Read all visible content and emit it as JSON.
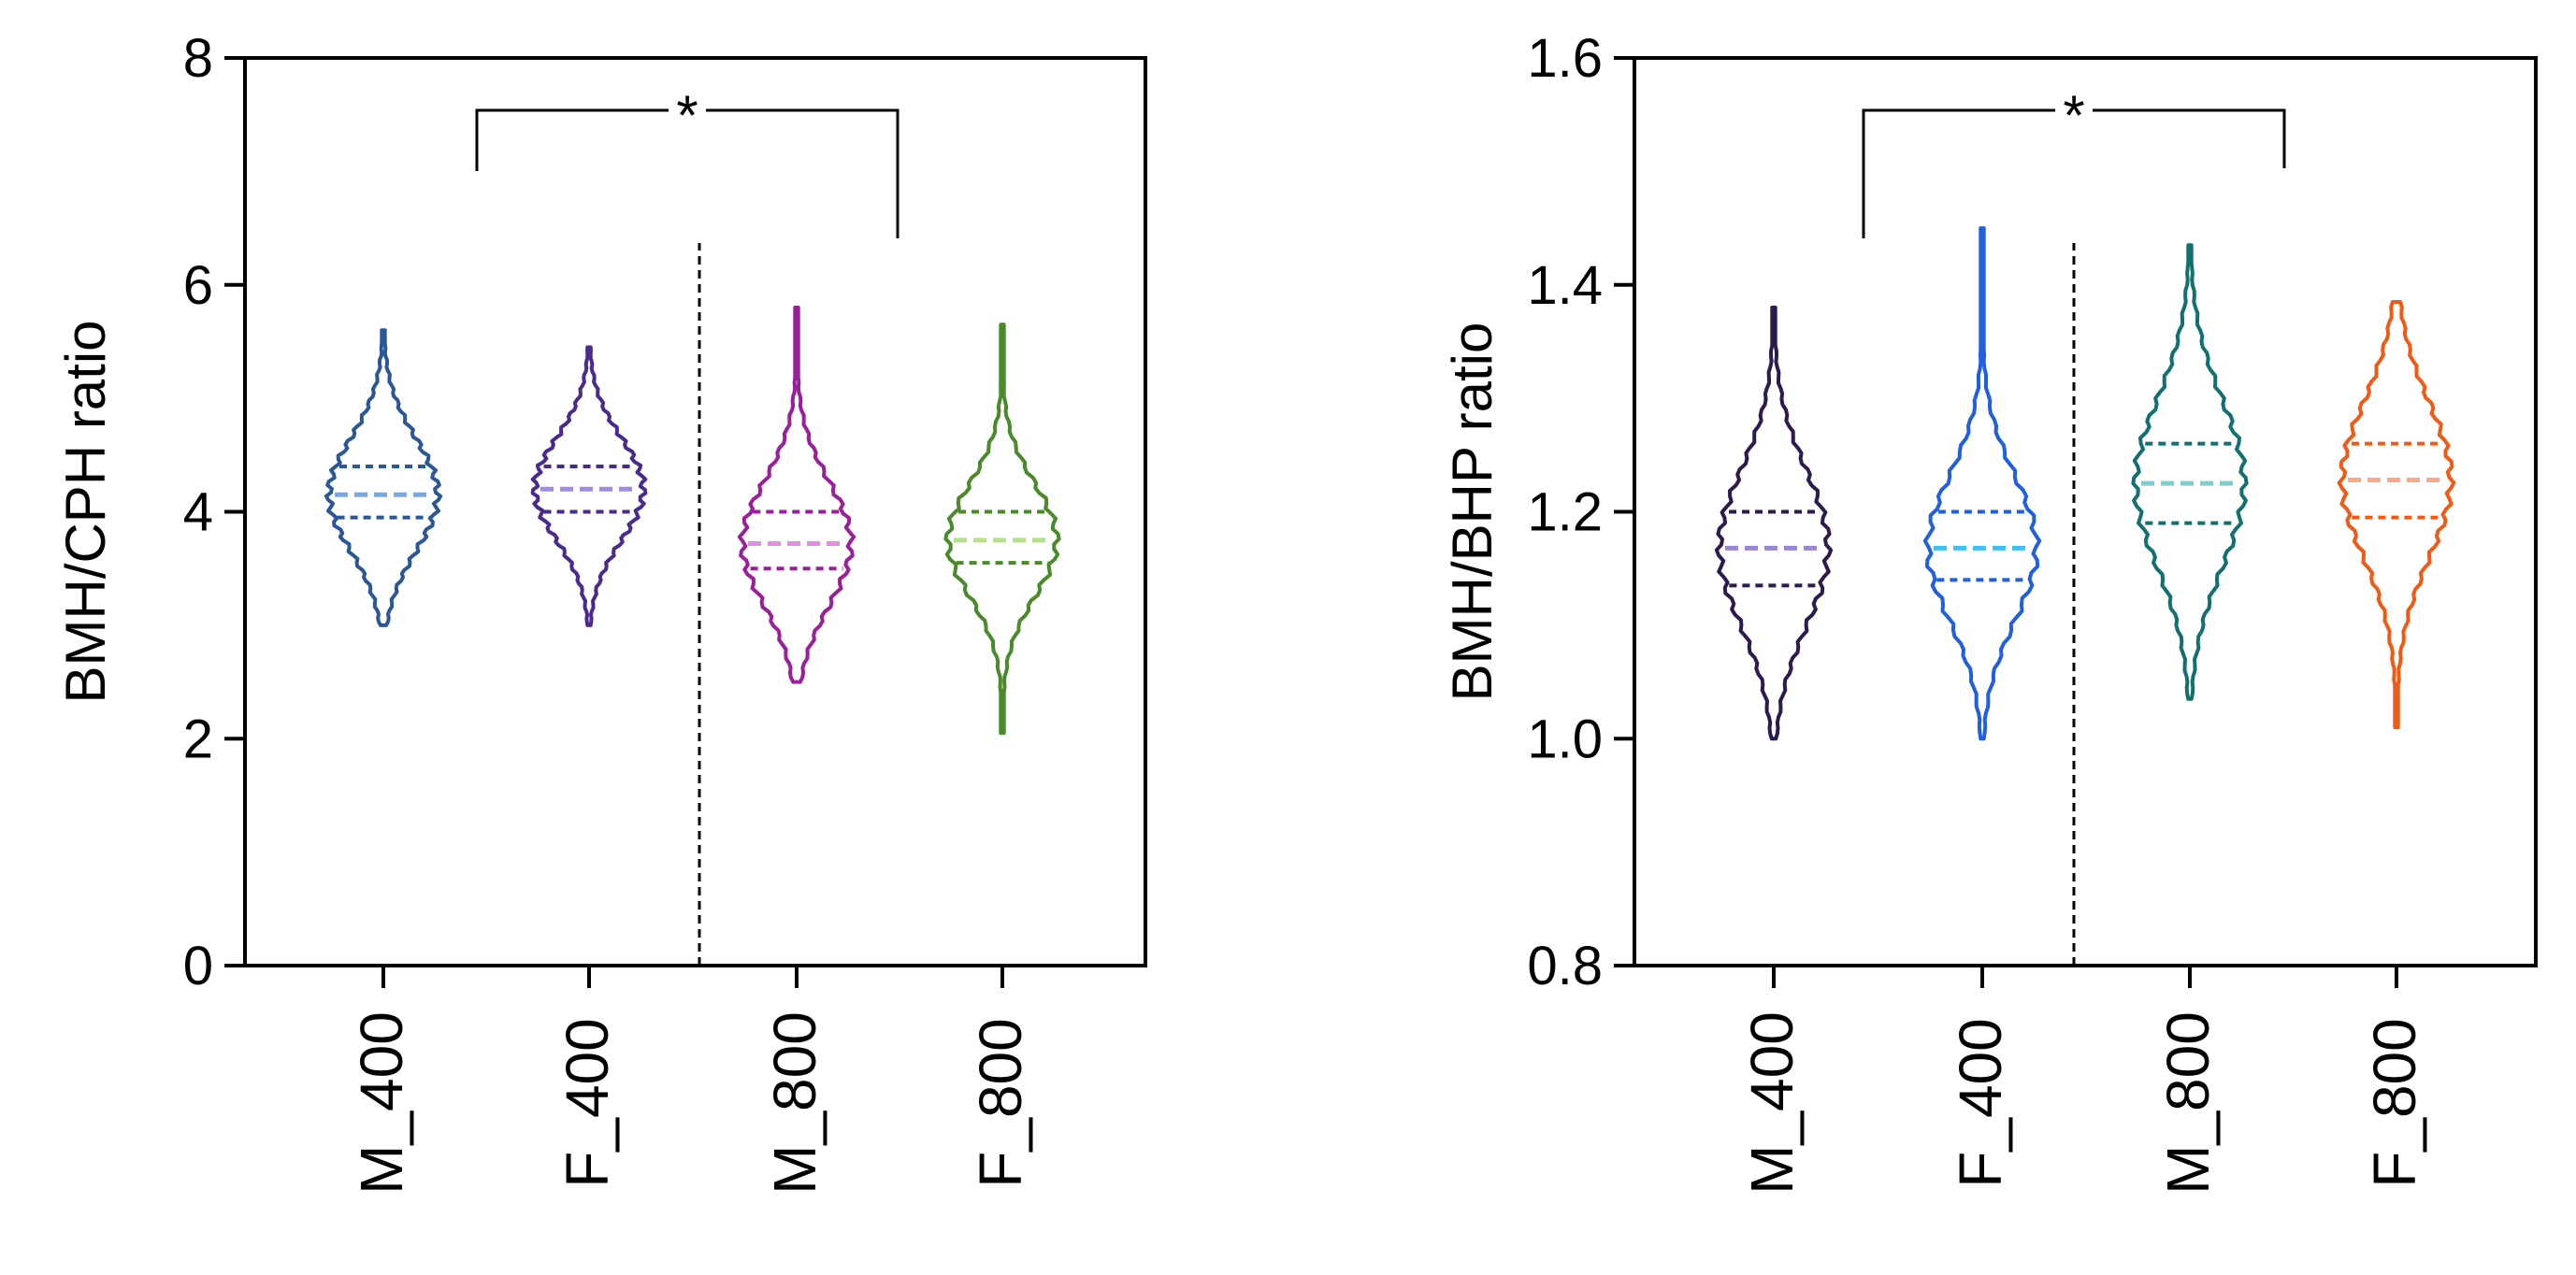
{
  "chart_data": [
    {
      "type": "violin",
      "ylabel": "BMH/CPH ratio",
      "ylim": [
        0,
        8
      ],
      "yticks": [
        "0",
        "2",
        "4",
        "6",
        "8"
      ],
      "categories": [
        "M_400",
        "F_400",
        "M_800",
        "F_800"
      ],
      "group_divider_after_category": 2,
      "series": [
        {
          "category": "M_400",
          "min": 3.0,
          "q1": 3.95,
          "median": 4.15,
          "q3": 4.4,
          "max": 5.6,
          "color": "#2b5797",
          "median_color": "#7aa7e0"
        },
        {
          "category": "F_400",
          "min": 3.0,
          "q1": 4.0,
          "median": 4.2,
          "q3": 4.4,
          "max": 5.45,
          "color": "#4a2a8c",
          "median_color": "#a08be0"
        },
        {
          "category": "M_800",
          "min": 2.5,
          "q1": 3.5,
          "median": 3.72,
          "q3": 4.0,
          "max": 5.8,
          "color": "#9a1f9a",
          "median_color": "#e58ae5"
        },
        {
          "category": "F_800",
          "min": 2.05,
          "q1": 3.55,
          "median": 3.75,
          "q3": 4.0,
          "max": 5.65,
          "color": "#4a8a2a",
          "median_color": "#b7e08a"
        }
      ],
      "significance": [
        {
          "from": "F_400",
          "to": "F_800",
          "label": "*"
        }
      ]
    },
    {
      "type": "violin",
      "ylabel": "BMH/BHP ratio",
      "ylim": [
        0.8,
        1.6
      ],
      "yticks": [
        "0.8",
        "1.0",
        "1.2",
        "1.4",
        "1.6"
      ],
      "categories": [
        "M_400",
        "F_400",
        "M_800",
        "F_800"
      ],
      "group_divider_after_category": 2,
      "series": [
        {
          "category": "M_400",
          "min": 1.0,
          "q1": 1.135,
          "median": 1.168,
          "q3": 1.2,
          "max": 1.38,
          "color": "#2d1a4f",
          "median_color": "#9b86d6"
        },
        {
          "category": "F_400",
          "min": 1.0,
          "q1": 1.14,
          "median": 1.168,
          "q3": 1.2,
          "max": 1.45,
          "color": "#1f5fe0",
          "median_color": "#3fc0f0"
        },
        {
          "category": "M_800",
          "min": 1.035,
          "q1": 1.19,
          "median": 1.225,
          "q3": 1.26,
          "max": 1.435,
          "color": "#137070",
          "median_color": "#7ad0d0"
        },
        {
          "category": "F_800",
          "min": 1.01,
          "q1": 1.195,
          "median": 1.228,
          "q3": 1.26,
          "max": 1.385,
          "color": "#f05a14",
          "median_color": "#f7a98a"
        }
      ],
      "significance": [
        {
          "from": "F_400",
          "to": "F_800",
          "label": "*"
        }
      ]
    }
  ]
}
